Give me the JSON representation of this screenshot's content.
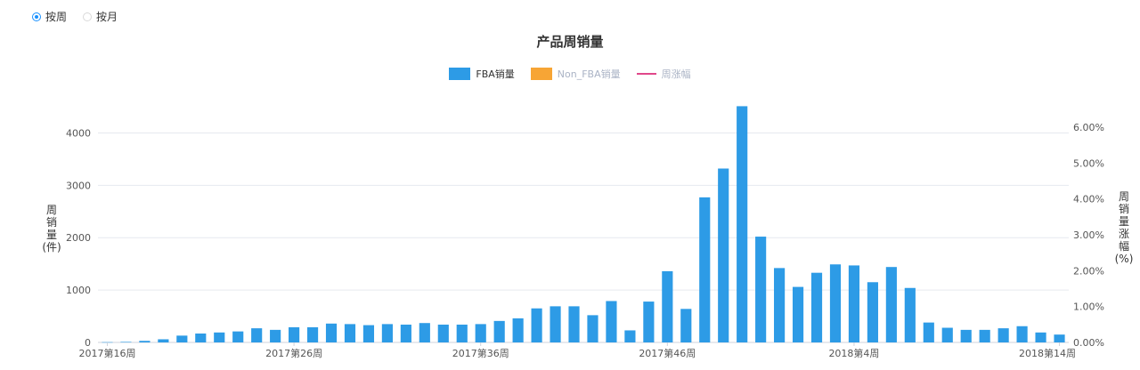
{
  "controls": {
    "options": [
      {
        "label": "按周",
        "checked": true
      },
      {
        "label": "按月",
        "checked": false
      }
    ]
  },
  "chart_data": {
    "type": "bar",
    "title": "产品周销量",
    "legend": [
      {
        "name": "FBA销量",
        "color": "#2d9be6",
        "kind": "bar",
        "active": true
      },
      {
        "name": "Non_FBA销量",
        "color": "#f7a535",
        "kind": "bar",
        "active": false
      },
      {
        "name": "周涨幅",
        "color": "#e0478a",
        "kind": "line",
        "active": false
      }
    ],
    "legend_position": "top-center",
    "ylabel_left": "周\n销\n量\n(件)",
    "ylabel_right": "周\n销\n量\n涨\n幅\n(%)",
    "ylim_left": [
      0,
      4500
    ],
    "yticks_left": [
      "0",
      "1000",
      "2000",
      "3000",
      "4000"
    ],
    "ylim_right": [
      0,
      6
    ],
    "yticks_right": [
      "0.00%",
      "1.00%",
      "2.00%",
      "3.00%",
      "4.00%",
      "5.00%",
      "6.00%"
    ],
    "x_tick_labels": [
      "2017第16周",
      "2017第26周",
      "2017第36周",
      "2017第46周",
      "2018第4周",
      "2018第14周"
    ],
    "grid": true,
    "series": [
      {
        "name": "FBA销量",
        "values": [
          5,
          10,
          30,
          60,
          130,
          170,
          190,
          210,
          270,
          240,
          290,
          290,
          360,
          350,
          330,
          350,
          340,
          370,
          340,
          340,
          350,
          410,
          460,
          650,
          690,
          690,
          520,
          790,
          230,
          780,
          1360,
          640,
          2770,
          3320,
          4510,
          2020,
          1420,
          1060,
          1330,
          1490,
          1470,
          1150,
          1440,
          1040,
          380,
          280,
          240,
          240,
          270,
          310,
          190,
          150
        ]
      }
    ]
  }
}
